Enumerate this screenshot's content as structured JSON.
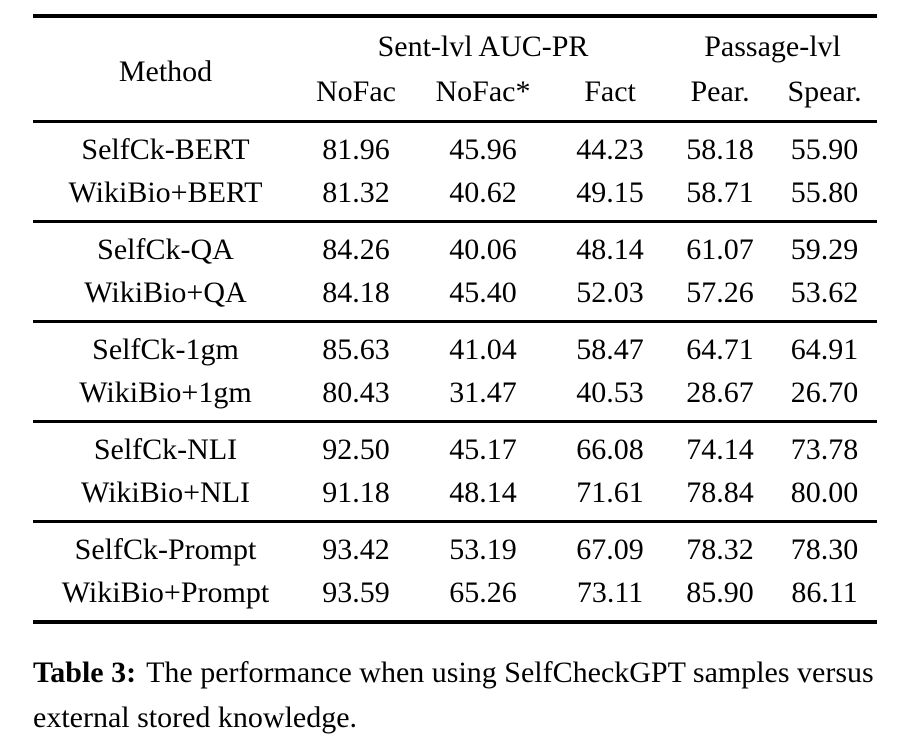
{
  "table": {
    "header": {
      "method": "Method",
      "sent_group": "Sent-lvl AUC-PR",
      "passage_group": "Passage-lvl",
      "subcols": [
        "NoFac",
        "NoFac*",
        "Fact",
        "Pear.",
        "Spear."
      ]
    },
    "groups": [
      {
        "rows": [
          {
            "method": "SelfCk-BERT",
            "values": [
              "81.96",
              "45.96",
              "44.23",
              "58.18",
              "55.90"
            ]
          },
          {
            "method": "WikiBio+BERT",
            "values": [
              "81.32",
              "40.62",
              "49.15",
              "58.71",
              "55.80"
            ]
          }
        ]
      },
      {
        "rows": [
          {
            "method": "SelfCk-QA",
            "values": [
              "84.26",
              "40.06",
              "48.14",
              "61.07",
              "59.29"
            ]
          },
          {
            "method": "WikiBio+QA",
            "values": [
              "84.18",
              "45.40",
              "52.03",
              "57.26",
              "53.62"
            ]
          }
        ]
      },
      {
        "rows": [
          {
            "method": "SelfCk-1gm",
            "values": [
              "85.63",
              "41.04",
              "58.47",
              "64.71",
              "64.91"
            ]
          },
          {
            "method": "WikiBio+1gm",
            "values": [
              "80.43",
              "31.47",
              "40.53",
              "28.67",
              "26.70"
            ]
          }
        ]
      },
      {
        "rows": [
          {
            "method": "SelfCk-NLI",
            "values": [
              "92.50",
              "45.17",
              "66.08",
              "74.14",
              "73.78"
            ]
          },
          {
            "method": "WikiBio+NLI",
            "values": [
              "91.18",
              "48.14",
              "71.61",
              "78.84",
              "80.00"
            ]
          }
        ]
      },
      {
        "rows": [
          {
            "method": "SelfCk-Prompt",
            "values": [
              "93.42",
              "53.19",
              "67.09",
              "78.32",
              "78.30"
            ]
          },
          {
            "method": "WikiBio+Prompt",
            "values": [
              "93.59",
              "65.26",
              "73.11",
              "85.90",
              "86.11"
            ]
          }
        ]
      }
    ]
  },
  "caption": {
    "label": "Table 3:",
    "text": "The performance when using SelfCheckGPT samples versus external stored knowledge."
  }
}
